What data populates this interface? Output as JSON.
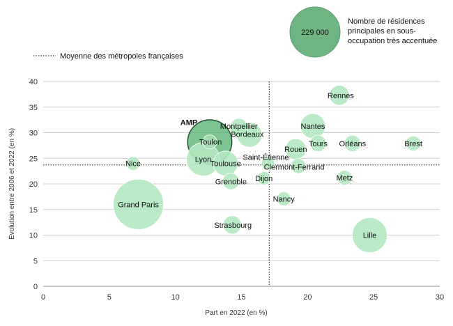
{
  "chart_data": {
    "type": "scatter",
    "xlabel": "Part en 2022 (en %)",
    "ylabel": "Évolution entre 2006 et 2022 (en %)",
    "xlim": [
      0,
      30
    ],
    "ylim": [
      0,
      40
    ],
    "xticks": [
      "0",
      "5",
      "10",
      "15",
      "20",
      "25",
      "30"
    ],
    "yticks": [
      "0",
      "5",
      "10",
      "15",
      "20",
      "25",
      "30",
      "35",
      "40"
    ],
    "grid": true,
    "average": {
      "label": "Moyenne des métropoles françaises",
      "x": 17.1,
      "y": 23.7
    },
    "size_legend": {
      "value_label": "229 000",
      "value": 229000,
      "text": [
        "Nombre de résidences",
        "principales en sous-",
        "occupation très accentuée"
      ]
    },
    "highlight": {
      "name": "AMP",
      "label": "Toulon"
    },
    "points": [
      {
        "name": "Grand Paris",
        "x": 7.2,
        "y": 16,
        "size": 229000
      },
      {
        "name": "Nice",
        "x": 6.8,
        "y": 24,
        "size": 17000
      },
      {
        "name": "Toulon",
        "x": 12.6,
        "y": 28.2,
        "size": 18000
      },
      {
        "name": "AMP",
        "x": 12.6,
        "y": 28.2,
        "size": 178000
      },
      {
        "name": "Lyon",
        "x": 12.1,
        "y": 24.8,
        "size": 100000
      },
      {
        "name": "Toulouse",
        "x": 13.8,
        "y": 24,
        "size": 56000
      },
      {
        "name": "Montpellier",
        "x": 14.8,
        "y": 31,
        "size": 30000
      },
      {
        "name": "Bordeaux",
        "x": 15.6,
        "y": 29.6,
        "size": 56000
      },
      {
        "name": "Grenoble",
        "x": 14.2,
        "y": 20.5,
        "size": 25000
      },
      {
        "name": "Strasbourg",
        "x": 14.3,
        "y": 12,
        "size": 30000
      },
      {
        "name": "Saint-Étienne",
        "x": 17.0,
        "y": 24,
        "size": 15000
      },
      {
        "name": "Dijon",
        "x": 16.7,
        "y": 21.1,
        "size": 16000
      },
      {
        "name": "Clermont-Ferrand",
        "x": 19.3,
        "y": 23.5,
        "size": 20000
      },
      {
        "name": "Nancy",
        "x": 18.2,
        "y": 17.1,
        "size": 18000
      },
      {
        "name": "Rouen",
        "x": 19.1,
        "y": 26.8,
        "size": 39000
      },
      {
        "name": "Nantes",
        "x": 20.4,
        "y": 31.3,
        "size": 56000
      },
      {
        "name": "Tours",
        "x": 20.8,
        "y": 27.9,
        "size": 24000
      },
      {
        "name": "Rennes",
        "x": 22.4,
        "y": 37.3,
        "size": 36000
      },
      {
        "name": "Orléans",
        "x": 23.4,
        "y": 27.9,
        "size": 24000
      },
      {
        "name": "Metz",
        "x": 22.8,
        "y": 21.2,
        "size": 20000
      },
      {
        "name": "Lille",
        "x": 24.7,
        "y": 10,
        "size": 110000
      },
      {
        "name": "Brest",
        "x": 28.0,
        "y": 27.9,
        "size": 20000
      }
    ]
  }
}
